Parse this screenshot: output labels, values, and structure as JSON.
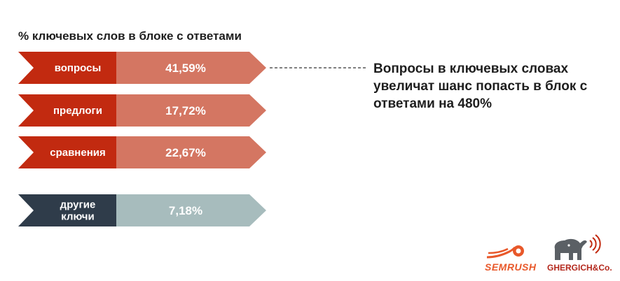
{
  "chart_data": {
    "type": "bar",
    "title": "% ключевых слов в блоке с ответами",
    "categories": [
      "вопросы",
      "предлоги",
      "сравнения",
      "другие ключи"
    ],
    "category_lines": [
      [
        "вопросы"
      ],
      [
        "предлоги"
      ],
      [
        "сравнения"
      ],
      [
        "другие",
        "ключи"
      ]
    ],
    "values": [
      41.59,
      17.72,
      22.67,
      7.18
    ],
    "value_labels": [
      "41,59%",
      "17,72%",
      "22,67%",
      "7,18%"
    ],
    "colors": {
      "label_red": "#c22a10",
      "value_red": "#d47662",
      "label_dark": "#2f3c4a",
      "value_gray": "#a7bcbd"
    }
  },
  "callout": {
    "text": "Вопросы в ключевых словах увеличат шанс попасть в блок с ответами на 480%"
  },
  "logos": {
    "semrush": "SEMRUSH",
    "gergich": "GHERGICH&Co."
  }
}
